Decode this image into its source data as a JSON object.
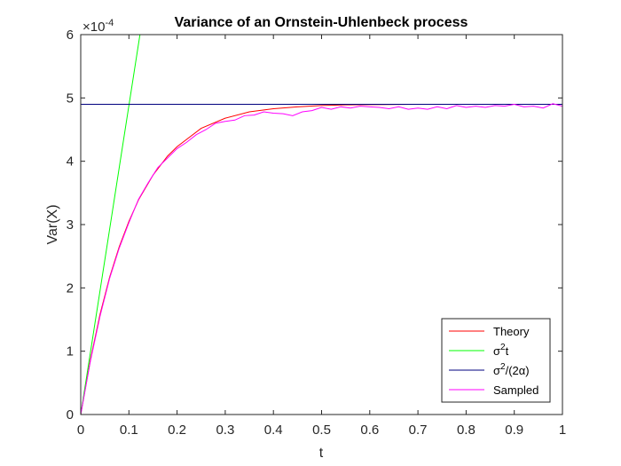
{
  "chart_data": {
    "type": "line",
    "title": "Variance of an Ornstein-Uhlenbeck process",
    "xlabel": "t",
    "ylabel": "Var(X)",
    "y_exponent_label": "×10",
    "y_exponent_value": "-4",
    "xlim": [
      0,
      1
    ],
    "ylim": [
      0,
      6
    ],
    "y_multiplier": 0.0001,
    "xticks": [
      0,
      0.1,
      0.2,
      0.3,
      0.4,
      0.5,
      0.6,
      0.7,
      0.8,
      0.9,
      1
    ],
    "xtick_labels": [
      "0",
      "0.1",
      "0.2",
      "0.3",
      "0.4",
      "0.5",
      "0.6",
      "0.7",
      "0.8",
      "0.9",
      "1"
    ],
    "yticks": [
      0,
      1,
      2,
      3,
      4,
      5,
      6
    ],
    "ytick_labels": [
      "0",
      "1",
      "2",
      "3",
      "4",
      "5",
      "6"
    ],
    "grid": false,
    "legend_position": "bottom-right",
    "series": [
      {
        "name": "Theory",
        "color": "#ff0000",
        "x": [
          0,
          0.02,
          0.04,
          0.06,
          0.08,
          0.1,
          0.12,
          0.15,
          0.18,
          0.2,
          0.25,
          0.3,
          0.35,
          0.4,
          0.45,
          0.5,
          0.55,
          0.6,
          0.7,
          0.8,
          0.9,
          1
        ],
        "y": [
          0,
          0.86,
          1.58,
          2.17,
          2.65,
          3.05,
          3.39,
          3.78,
          4.08,
          4.23,
          4.52,
          4.68,
          4.78,
          4.83,
          4.86,
          4.88,
          4.89,
          4.895,
          4.9,
          4.9,
          4.9,
          4.9
        ]
      },
      {
        "name": "σ²t",
        "legend_base": "σ",
        "legend_sup": "2",
        "legend_tail": "t",
        "color": "#00ff00",
        "x": [
          0,
          0.125
        ],
        "y": [
          0,
          6.1
        ]
      },
      {
        "name": "σ²/(2α)",
        "legend_base": "σ",
        "legend_sup": "2",
        "legend_tail": "/(2α)",
        "color": "#00007f",
        "x": [
          0,
          1
        ],
        "y": [
          4.9,
          4.9
        ]
      },
      {
        "name": "Sampled",
        "color": "#ff00ff",
        "x": [
          0,
          0.02,
          0.04,
          0.06,
          0.08,
          0.1,
          0.12,
          0.14,
          0.16,
          0.18,
          0.2,
          0.22,
          0.24,
          0.26,
          0.28,
          0.3,
          0.32,
          0.34,
          0.36,
          0.38,
          0.4,
          0.42,
          0.44,
          0.46,
          0.48,
          0.5,
          0.52,
          0.54,
          0.56,
          0.58,
          0.6,
          0.62,
          0.64,
          0.66,
          0.68,
          0.7,
          0.72,
          0.74,
          0.76,
          0.78,
          0.8,
          0.82,
          0.84,
          0.86,
          0.88,
          0.9,
          0.92,
          0.94,
          0.96,
          0.98,
          1
        ],
        "y": [
          0,
          0.84,
          1.55,
          2.15,
          2.63,
          3.03,
          3.4,
          3.66,
          3.9,
          4.05,
          4.2,
          4.3,
          4.42,
          4.5,
          4.6,
          4.63,
          4.65,
          4.72,
          4.73,
          4.78,
          4.76,
          4.75,
          4.72,
          4.78,
          4.8,
          4.85,
          4.82,
          4.86,
          4.84,
          4.87,
          4.86,
          4.85,
          4.83,
          4.86,
          4.82,
          4.84,
          4.82,
          4.86,
          4.83,
          4.88,
          4.85,
          4.87,
          4.85,
          4.88,
          4.87,
          4.9,
          4.86,
          4.87,
          4.84,
          4.91,
          4.87
        ]
      }
    ]
  }
}
